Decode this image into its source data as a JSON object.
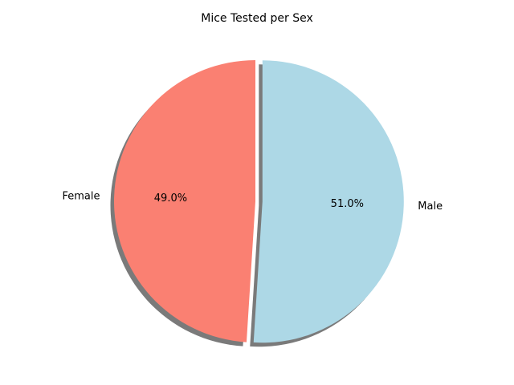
{
  "chart_data": {
    "type": "pie",
    "title": "Mice Tested per Sex",
    "slices": [
      {
        "label": "Female",
        "value": 49.0,
        "pct_label": "49.0%",
        "color": "#fa8072",
        "explode": 0.0
      },
      {
        "label": "Male",
        "value": 51.0,
        "pct_label": "51.0%",
        "color": "#add8e6",
        "explode": 0.05
      }
    ],
    "start_angle_deg": 90,
    "counterclockwise": true,
    "shadow": true,
    "shadow_color": "#7a7a7a"
  }
}
